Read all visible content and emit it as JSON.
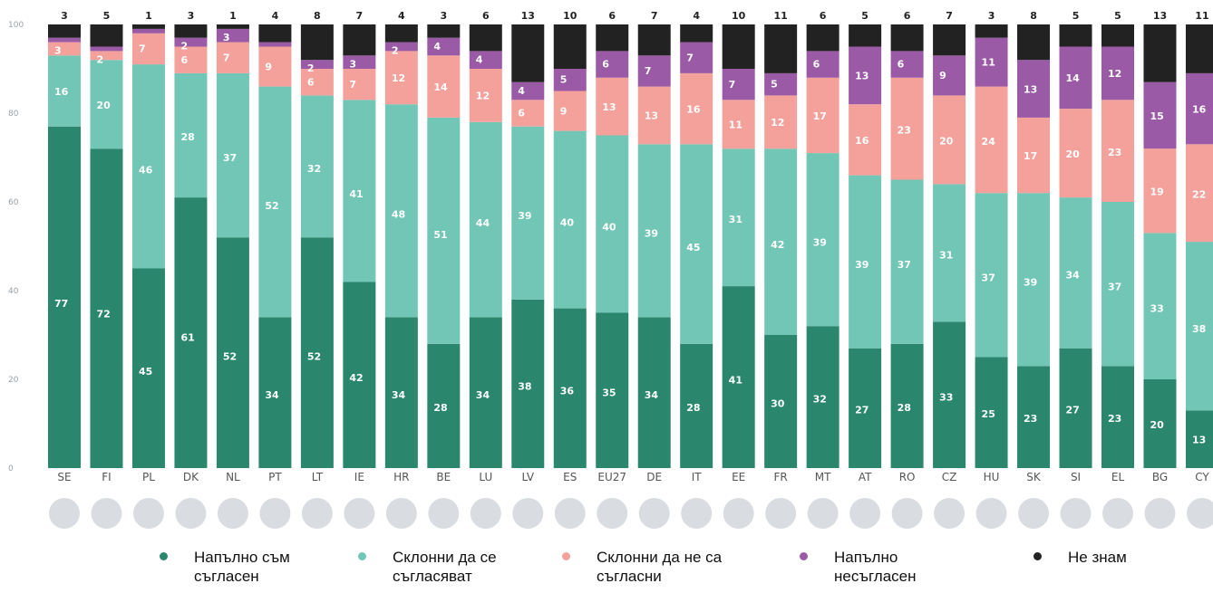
{
  "chart_data": {
    "type": "bar",
    "stacked": true,
    "ylim": [
      0,
      100
    ],
    "yticks": [
      "0",
      "20",
      "40",
      "60",
      "80",
      "100"
    ],
    "categories": [
      "SE",
      "FI",
      "PL",
      "DK",
      "NL",
      "PT",
      "LT",
      "IE",
      "HR",
      "BE",
      "LU",
      "LV",
      "ES",
      "EU27",
      "DE",
      "IT",
      "EE",
      "FR",
      "MT",
      "AT",
      "RO",
      "CZ",
      "HU",
      "SK",
      "SI",
      "EL",
      "BG",
      "CY"
    ],
    "series": [
      {
        "name": "Напълно съм съгласен",
        "color": "#2a876e",
        "values": [
          77,
          72,
          45,
          61,
          52,
          34,
          52,
          42,
          34,
          28,
          34,
          38,
          36,
          35,
          34,
          28,
          41,
          30,
          32,
          27,
          28,
          33,
          25,
          23,
          27,
          23,
          20,
          13
        ]
      },
      {
        "name": "Склонни да се съгласяват",
        "color": "#72c6b6",
        "values": [
          16,
          20,
          46,
          28,
          37,
          52,
          32,
          41,
          48,
          51,
          44,
          39,
          40,
          40,
          39,
          45,
          31,
          42,
          39,
          39,
          37,
          31,
          37,
          39,
          34,
          37,
          33,
          38
        ]
      },
      {
        "name": "Склонни да не са съгласни",
        "color": "#f4a19b",
        "values": [
          3,
          2,
          7,
          6,
          7,
          9,
          6,
          7,
          12,
          14,
          12,
          6,
          9,
          13,
          13,
          16,
          11,
          12,
          17,
          16,
          23,
          20,
          24,
          17,
          20,
          23,
          19,
          22
        ]
      },
      {
        "name": "Напълно несъгласен",
        "color": "#9a5aa6",
        "values": [
          1,
          1,
          1,
          2,
          3,
          1,
          2,
          3,
          2,
          4,
          4,
          4,
          5,
          6,
          7,
          7,
          7,
          5,
          6,
          13,
          6,
          9,
          11,
          13,
          14,
          12,
          15,
          16
        ]
      },
      {
        "name": "Не знам",
        "color": "#222222",
        "values": [
          3,
          5,
          1,
          3,
          1,
          4,
          8,
          7,
          4,
          3,
          6,
          13,
          10,
          6,
          7,
          4,
          10,
          11,
          6,
          5,
          6,
          7,
          3,
          8,
          5,
          5,
          13,
          11
        ]
      }
    ],
    "legend_position": "bottom",
    "grid": false
  }
}
